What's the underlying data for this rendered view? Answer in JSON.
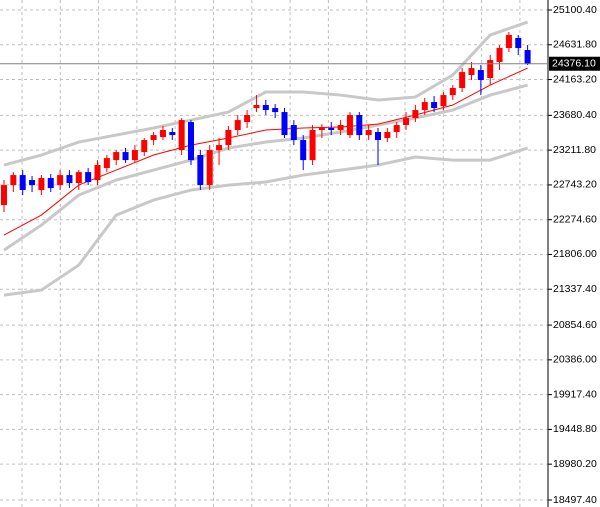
{
  "chart_data": {
    "type": "candlestick",
    "up_color": "#ff0000",
    "down_color": "#0000ff",
    "grid": true,
    "ylim": [
      18403,
      25235
    ],
    "yticks": [
      {
        "value": 25100.4,
        "label": "25100.40"
      },
      {
        "value": 24631.8,
        "label": "24631.80"
      },
      {
        "value": 24163.2,
        "label": "24163.20"
      },
      {
        "value": 23680.4,
        "label": "23680.40"
      },
      {
        "value": 23211.8,
        "label": "23211.80"
      },
      {
        "value": 22743.2,
        "label": "22743.20"
      },
      {
        "value": 22274.6,
        "label": "22274.60"
      },
      {
        "value": 21806,
        "label": "21806.00"
      },
      {
        "value": 21337.4,
        "label": "21337.40"
      },
      {
        "value": 20854.6,
        "label": "20854.60"
      },
      {
        "value": 20386,
        "label": "20386.00"
      },
      {
        "value": 19917.4,
        "label": "19917.40"
      },
      {
        "value": 19448.8,
        "label": "19448.80"
      },
      {
        "value": 18980.2,
        "label": "18980.20"
      },
      {
        "value": 18497.4,
        "label": "18497.40"
      }
    ],
    "current_price": {
      "value": 24376.1,
      "label": "24376.10"
    },
    "open": [
      22472,
      22741,
      22876,
      22809,
      22674,
      22836,
      22741,
      22876,
      22768,
      22916,
      22809,
      22970,
      23078,
      23186,
      23078,
      23186,
      23348,
      23388,
      23456,
      23213,
      23590,
      23146,
      22741,
      23213,
      23280,
      23483,
      23590,
      23779,
      23820,
      23779,
      23725,
      23550,
      23348,
      23078,
      23483,
      23510,
      23483,
      23415,
      23685,
      23415,
      23456,
      23375,
      23456,
      23550,
      23644,
      23752,
      23860,
      23806,
      23954,
      24049,
      24224,
      24291,
      24184,
      24399,
      24588,
      24723,
      24561
    ],
    "high": [
      22809,
      22916,
      22943,
      22863,
      22876,
      22889,
      22943,
      22943,
      22943,
      22970,
      23078,
      23146,
      23213,
      23240,
      23280,
      23375,
      23456,
      23537,
      23510,
      23644,
      23617,
      23213,
      23280,
      23375,
      23537,
      23685,
      23752,
      23954,
      23887,
      23833,
      23779,
      23617,
      23415,
      23550,
      23563,
      23590,
      23617,
      23725,
      23725,
      23550,
      23510,
      23510,
      23590,
      23725,
      23820,
      23914,
      23941,
      23995,
      24089,
      24318,
      24399,
      24359,
      24494,
      24628,
      24804,
      24763,
      24628
    ],
    "low": [
      22377,
      22647,
      22606,
      22647,
      22606,
      22647,
      22674,
      22701,
      22674,
      22741,
      22741,
      22916,
      23011,
      23038,
      23051,
      23132,
      23280,
      23348,
      23348,
      23146,
      23011,
      22674,
      22674,
      23011,
      23213,
      23415,
      23510,
      23725,
      23685,
      23644,
      23375,
      23280,
      22943,
      23011,
      23375,
      23415,
      23415,
      23375,
      23348,
      23348,
      23011,
      23321,
      23375,
      23483,
      23590,
      23685,
      23725,
      23752,
      23887,
      23995,
      24157,
      23954,
      24089,
      24291,
      24534,
      24494,
      24359
    ],
    "close": [
      22741,
      22876,
      22674,
      22741,
      22836,
      22701,
      22876,
      22768,
      22916,
      22782,
      23011,
      23105,
      23186,
      23078,
      23213,
      23348,
      23415,
      23483,
      23415,
      23617,
      23078,
      22741,
      23213,
      23280,
      23483,
      23617,
      23685,
      23820,
      23752,
      23725,
      23415,
      23348,
      23078,
      23483,
      23510,
      23483,
      23550,
      23685,
      23415,
      23483,
      23348,
      23456,
      23550,
      23644,
      23752,
      23860,
      23779,
      23954,
      24049,
      24264,
      24318,
      24157,
      24426,
      24588,
      24763,
      24588,
      24376.1
    ],
    "overlays": [
      {
        "color": "#c8c8c8",
        "x": [
          0,
          4,
          8,
          12,
          16,
          20,
          24,
          28,
          32,
          36,
          40,
          44,
          48,
          52,
          56
        ],
        "values": [
          23011,
          23146,
          23321,
          23415,
          23510,
          23617,
          23725,
          23995,
          23995,
          23954,
          23887,
          23927,
          24224,
          24763,
          24938
        ]
      },
      {
        "color": "#c8c8c8",
        "x": [
          0,
          4,
          8,
          12,
          16,
          20,
          24,
          28,
          32,
          36,
          40,
          44,
          48,
          52,
          56
        ],
        "values": [
          21865,
          22202,
          22606,
          22809,
          22943,
          23078,
          23240,
          23321,
          23375,
          23456,
          23550,
          23644,
          23752,
          23954,
          24089
        ]
      },
      {
        "color": "#c8c8c8",
        "x": [
          0,
          4,
          8,
          12,
          16,
          20,
          24,
          28,
          32,
          36,
          40,
          44,
          48,
          52,
          56
        ],
        "values": [
          21258,
          21326,
          21663,
          22337,
          22539,
          22674,
          22741,
          22782,
          22876,
          22943,
          23011,
          23119,
          23078,
          23078,
          23240
        ]
      },
      {
        "color": "#ff0000",
        "x": [
          0,
          4,
          8,
          12,
          16,
          20,
          24,
          28,
          32,
          36,
          40,
          44,
          48,
          52,
          56
        ],
        "values": [
          22067,
          22337,
          22741,
          22943,
          23146,
          23280,
          23375,
          23483,
          23510,
          23523,
          23563,
          23685,
          23820,
          24089,
          24318
        ]
      }
    ]
  }
}
